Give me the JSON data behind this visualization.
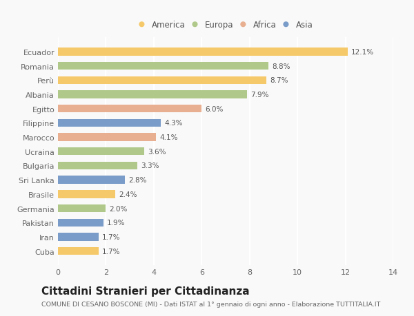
{
  "categories": [
    "Cuba",
    "Iran",
    "Pakistan",
    "Germania",
    "Brasile",
    "Sri Lanka",
    "Bulgaria",
    "Ucraina",
    "Marocco",
    "Filippine",
    "Egitto",
    "Albania",
    "Perù",
    "Romania",
    "Ecuador"
  ],
  "values": [
    1.7,
    1.7,
    1.9,
    2.0,
    2.4,
    2.8,
    3.3,
    3.6,
    4.1,
    4.3,
    6.0,
    7.9,
    8.7,
    8.8,
    12.1
  ],
  "continents": [
    "America",
    "Asia",
    "Asia",
    "Europa",
    "America",
    "Asia",
    "Europa",
    "Europa",
    "Africa",
    "Asia",
    "Africa",
    "Europa",
    "America",
    "Europa",
    "America"
  ],
  "colors": {
    "America": "#F5C96A",
    "Europa": "#B0C98A",
    "Africa": "#E8B090",
    "Asia": "#7A9CC8"
  },
  "xlim": [
    0,
    14
  ],
  "xticks": [
    0,
    2,
    4,
    6,
    8,
    10,
    12,
    14
  ],
  "title": "Cittadini Stranieri per Cittadinanza",
  "subtitle": "COMUNE DI CESANO BOSCONE (MI) - Dati ISTAT al 1° gennaio di ogni anno - Elaborazione TUTTITALIA.IT",
  "background_color": "#f9f9f9",
  "grid_color": "#ffffff",
  "bar_height": 0.55,
  "label_fontsize": 7.5,
  "tick_fontsize": 8,
  "title_fontsize": 11,
  "subtitle_fontsize": 6.8,
  "legend_order": [
    "America",
    "Europa",
    "Africa",
    "Asia"
  ]
}
